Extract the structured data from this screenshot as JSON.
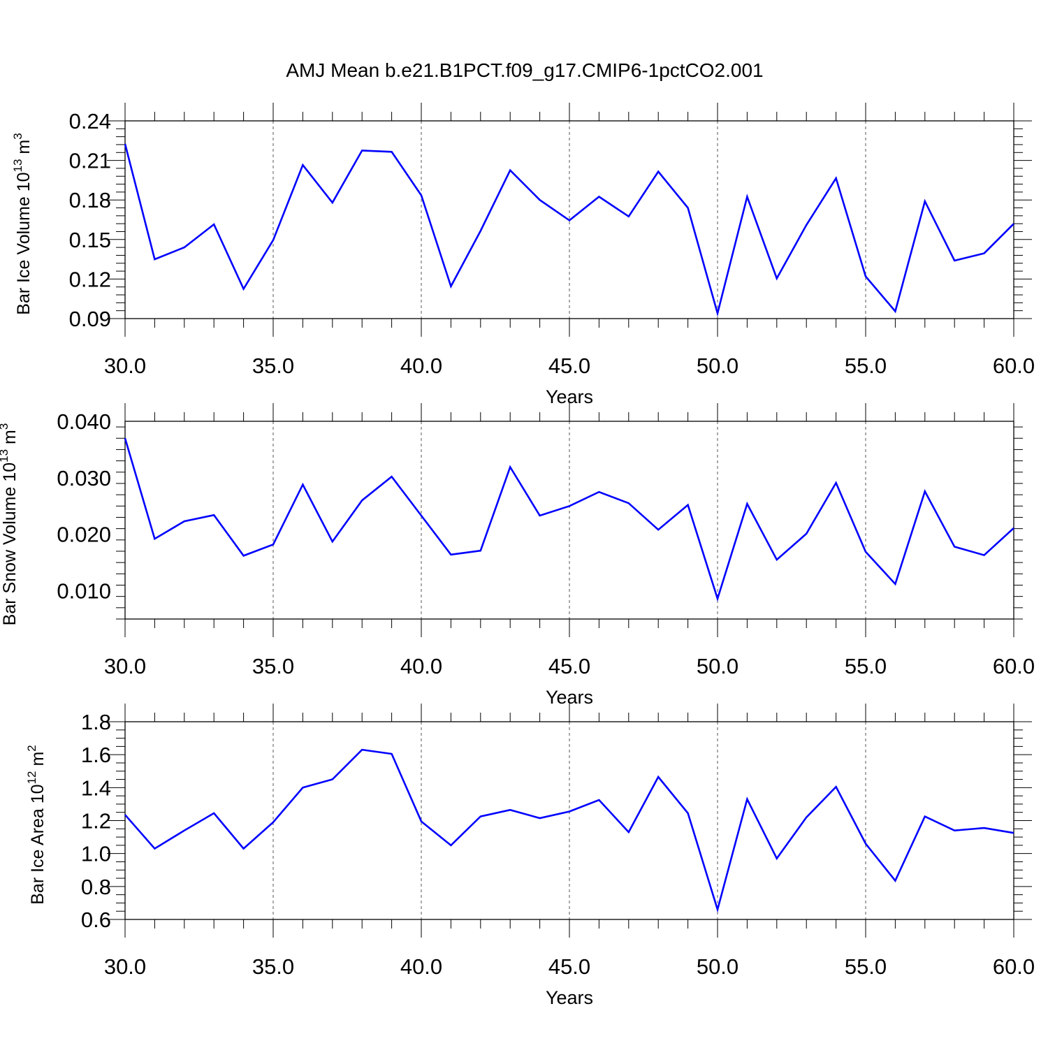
{
  "figure": {
    "title": "AMJ Mean b.e21.B1PCT.f09_g17.CMIP6-1pctCO2.001"
  },
  "colors": {
    "line": "#0000ff",
    "axis": "#000000",
    "grid": "#555555"
  },
  "chart_data": [
    {
      "type": "line",
      "title": "",
      "xlabel": "Years",
      "ylabel_parts": [
        "Bar Ice Volume 10",
        "13",
        " m",
        "3"
      ],
      "xlim": [
        30,
        60
      ],
      "ylim": [
        0.09,
        0.24
      ],
      "xticks": [
        "30.0",
        "35.0",
        "40.0",
        "45.0",
        "50.0",
        "55.0",
        "60.0"
      ],
      "yticks": [
        "0.09",
        "0.12",
        "0.15",
        "0.18",
        "0.21",
        "0.24"
      ],
      "grid": "vertical dashed at major x ticks",
      "series": [
        {
          "x": [
            30,
            31,
            32,
            33,
            34,
            35,
            36,
            37,
            38,
            39,
            40,
            41,
            42,
            43,
            44,
            45,
            46,
            47,
            48,
            49,
            50,
            51,
            52,
            53,
            54,
            55,
            56,
            57,
            58,
            59,
            60
          ],
          "values": [
            0.2225,
            0.135,
            0.144,
            0.1615,
            0.1125,
            0.1495,
            0.2065,
            0.178,
            0.2175,
            0.2165,
            0.1835,
            0.1145,
            0.1565,
            0.2025,
            0.18,
            0.1645,
            0.1825,
            0.1675,
            0.2015,
            0.174,
            0.094,
            0.1825,
            0.1205,
            0.161,
            0.1965,
            0.122,
            0.0955,
            0.179,
            0.134,
            0.1395,
            0.162
          ]
        }
      ]
    },
    {
      "type": "line",
      "title": "",
      "xlabel": "Years",
      "ylabel_parts": [
        "Bar Snow Volume 10",
        "13",
        " m",
        "3"
      ],
      "xlim": [
        30,
        60
      ],
      "ylim": [
        0.005,
        0.04
      ],
      "xticks": [
        "30.0",
        "35.0",
        "40.0",
        "45.0",
        "50.0",
        "55.0",
        "60.0"
      ],
      "yticks": [
        "0.010",
        "0.020",
        "0.030",
        "0.040"
      ],
      "grid": "vertical dashed at major x ticks",
      "series": [
        {
          "x": [
            30,
            31,
            32,
            33,
            34,
            35,
            36,
            37,
            38,
            39,
            40,
            41,
            42,
            43,
            44,
            45,
            46,
            47,
            48,
            49,
            50,
            51,
            52,
            53,
            54,
            55,
            56,
            57,
            58,
            59,
            60
          ],
          "values": [
            0.037,
            0.0192,
            0.0223,
            0.0234,
            0.0162,
            0.0182,
            0.0288,
            0.0187,
            0.026,
            0.0302,
            0.0233,
            0.0164,
            0.0171,
            0.0319,
            0.0233,
            0.025,
            0.0275,
            0.0255,
            0.0208,
            0.0252,
            0.0086,
            0.0254,
            0.0155,
            0.0201,
            0.0291,
            0.0169,
            0.0112,
            0.0276,
            0.0178,
            0.0163,
            0.0211
          ]
        }
      ]
    },
    {
      "type": "line",
      "title": "",
      "xlabel": "Years",
      "ylabel_parts": [
        "Bar Ice Area 10",
        "12",
        " m",
        "2"
      ],
      "xlim": [
        30,
        60
      ],
      "ylim": [
        0.6,
        1.8
      ],
      "xticks": [
        "30.0",
        "35.0",
        "40.0",
        "45.0",
        "50.0",
        "55.0",
        "60.0"
      ],
      "yticks": [
        "0.6",
        "0.8",
        "1.0",
        "1.2",
        "1.4",
        "1.6",
        "1.8"
      ],
      "grid": "vertical dashed at major x ticks",
      "series": [
        {
          "x": [
            30,
            31,
            32,
            33,
            34,
            35,
            36,
            37,
            38,
            39,
            40,
            41,
            42,
            43,
            44,
            45,
            46,
            47,
            48,
            49,
            50,
            51,
            52,
            53,
            54,
            55,
            56,
            57,
            58,
            59,
            60
          ],
          "values": [
            1.235,
            1.03,
            1.14,
            1.245,
            1.03,
            1.19,
            1.4,
            1.45,
            1.63,
            1.605,
            1.195,
            1.05,
            1.225,
            1.265,
            1.215,
            1.255,
            1.325,
            1.13,
            1.465,
            1.245,
            0.66,
            1.33,
            0.97,
            1.22,
            1.405,
            1.06,
            0.835,
            1.225,
            1.14,
            1.155,
            1.125
          ]
        }
      ]
    }
  ]
}
